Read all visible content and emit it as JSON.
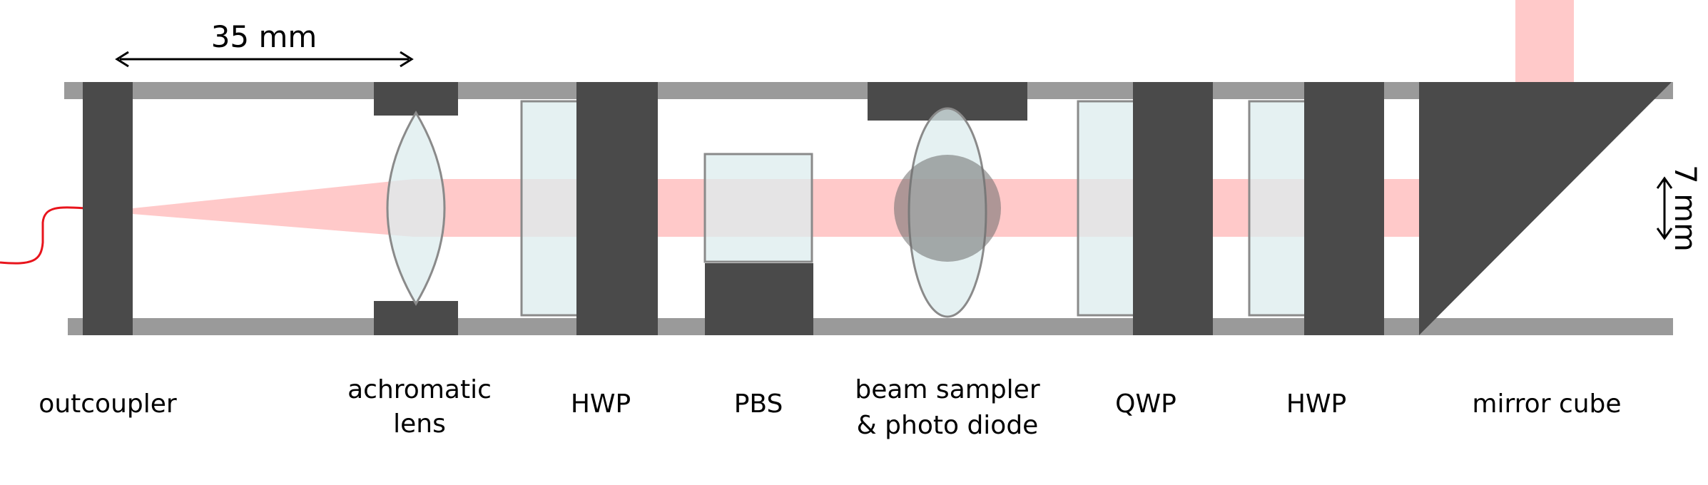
{
  "dimensions": {
    "length_label": "35 mm",
    "beam_label": "7 mm"
  },
  "components": [
    {
      "id": "outcoupler",
      "label_lines": [
        "outcoupler"
      ]
    },
    {
      "id": "achromatic-lens",
      "label_lines": [
        "achromatic",
        "lens"
      ]
    },
    {
      "id": "hwp-1",
      "label_lines": [
        "HWP"
      ]
    },
    {
      "id": "pbs",
      "label_lines": [
        "PBS"
      ]
    },
    {
      "id": "beam-sampler",
      "label_lines": [
        "beam sampler",
        "& photo diode"
      ]
    },
    {
      "id": "qwp",
      "label_lines": [
        "QWP"
      ]
    },
    {
      "id": "hwp-2",
      "label_lines": [
        "HWP"
      ]
    },
    {
      "id": "mirror-cube",
      "label_lines": [
        "mirror cube"
      ]
    }
  ],
  "colors": {
    "rail": "#9a9a9a",
    "mount": "#4a4a4a",
    "beam": "#ffc9c9",
    "optic_fill": "#dcecee",
    "optic_edge": "#8a8a8a",
    "fiber": "#e8141c"
  }
}
